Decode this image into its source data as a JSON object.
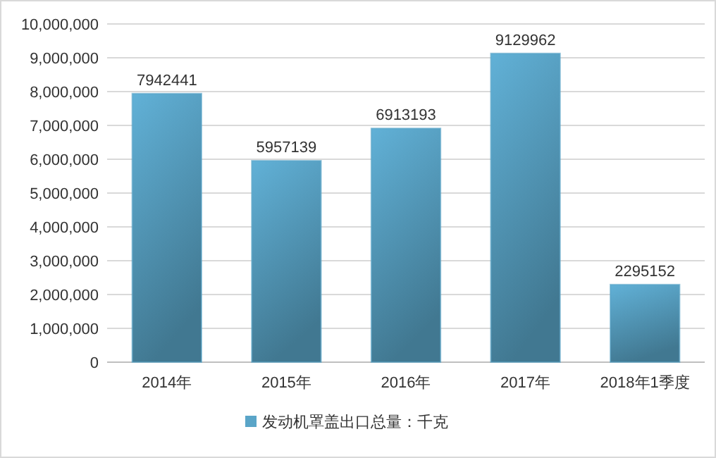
{
  "chart_data": {
    "type": "bar",
    "categories": [
      "2014年",
      "2015年",
      "2016年",
      "2017年",
      "2018年1季度"
    ],
    "series": [
      {
        "name": "发动机罩盖出口总量：千克",
        "color": "#5aa5c8",
        "values": [
          7942441,
          5957139,
          6913193,
          9129962,
          2295152
        ]
      }
    ],
    "ylim": [
      0,
      10000000
    ],
    "yticks": [
      0,
      {
        "value": 1000000,
        "label": "1,000,000"
      },
      {
        "value": 2000000,
        "label": "2,000,000"
      },
      {
        "value": 3000000,
        "label": "3,000,000"
      },
      {
        "value": 4000000,
        "label": "4,000,000"
      },
      {
        "value": 5000000,
        "label": "5,000,000"
      },
      {
        "value": 6000000,
        "label": "6,000,000"
      },
      {
        "value": 7000000,
        "label": "7,000,000"
      },
      {
        "value": 8000000,
        "label": "8,000,000"
      },
      {
        "value": 9000000,
        "label": "9,000,000"
      },
      {
        "value": 10000000,
        "label": "10,000,000"
      }
    ],
    "grid": "y",
    "legend": "bottom",
    "data_labels": true
  }
}
